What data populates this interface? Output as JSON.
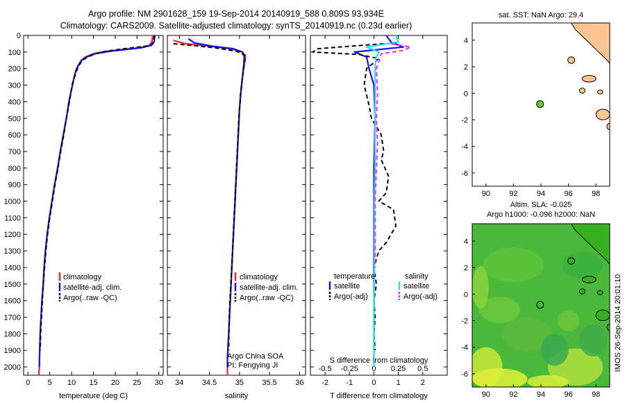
{
  "header": {
    "line1": "Argo profile: NM 2901628_159 19-Sep-2014 20140919_588 0.809S 93.934E",
    "line2": "Climatology: CARS2009. Satellite-adjusted climatology: synTS_20140919.nc (0.23d earlier)"
  },
  "colors": {
    "climatology": "#ff2020",
    "satellite": "#1010ff",
    "argo": "#000000",
    "sal_satellite": "#20e0ff",
    "sal_argo": "#ff20ff",
    "land": "#fcc490",
    "marker": "#66cc33"
  },
  "depth_axis": {
    "ticks": [
      0,
      100,
      200,
      300,
      400,
      500,
      600,
      700,
      800,
      900,
      1000,
      1100,
      1200,
      1300,
      1400,
      1500,
      1600,
      1700,
      1800,
      1900,
      2000
    ],
    "range": [
      0,
      2050
    ]
  },
  "legend": {
    "climatology": "climatology",
    "satellite_adj": "satellite-adj. clim.",
    "argo": "Argo(..raw -QC)",
    "temperature_head": "temperature",
    "salinity_head": "salinity",
    "satellite": "satellite",
    "argo_adj": "Argo(-adj)"
  },
  "annotations": {
    "program": "Argo China SOA",
    "pi": "PI: Fengying JI",
    "imos": "IMOS 26-Sep-2014 20:01:10"
  },
  "chart_data": [
    {
      "type": "line",
      "name": "temperature-profile",
      "xlabel": "temperature (deg C)",
      "ylabel": "",
      "xlim": [
        -1,
        31
      ],
      "ylim": [
        2050,
        0
      ],
      "xticks": [
        0,
        5,
        10,
        15,
        20,
        25,
        30
      ],
      "series": [
        {
          "name": "climatology",
          "color": "#ff2020",
          "x": [
            28.6,
            28.4,
            27.8,
            25.5,
            18,
            15,
            13.2,
            12.2,
            11.5,
            11,
            10.6,
            10.2,
            9.4,
            8.8,
            8.1,
            7.4,
            6.8,
            6.1,
            5.5,
            4.9,
            4.4,
            4.0,
            3.7,
            3.5,
            3.2,
            3.0,
            2.8,
            2.7,
            2.6,
            2.5
          ],
          "depth": [
            0,
            40,
            60,
            75,
            95,
            110,
            130,
            150,
            180,
            210,
            250,
            300,
            400,
            500,
            600,
            700,
            800,
            900,
            1000,
            1100,
            1200,
            1300,
            1400,
            1500,
            1600,
            1700,
            1800,
            1900,
            2000,
            2050
          ]
        },
        {
          "name": "satellite-adj",
          "color": "#1010ff",
          "x": [
            29.1,
            28.9,
            28.3,
            25.8,
            19,
            15.5,
            13.4,
            12.3,
            11.6,
            11,
            10.6,
            10.2,
            9.4,
            8.8,
            8.1,
            7.4,
            6.8,
            6.1,
            5.5,
            4.9,
            4.4,
            4.0,
            3.7,
            3.5,
            3.2,
            3.0,
            2.8,
            2.7,
            2.6
          ],
          "depth": [
            0,
            40,
            60,
            75,
            95,
            110,
            130,
            150,
            180,
            210,
            250,
            300,
            400,
            500,
            600,
            700,
            800,
            900,
            1000,
            1100,
            1200,
            1300,
            1400,
            1500,
            1600,
            1700,
            1800,
            1900,
            2000
          ]
        },
        {
          "name": "argo",
          "color": "#000000",
          "dashed": true,
          "x": [
            29.0,
            28.6,
            27,
            22,
            18,
            15.5,
            13.7,
            12.5,
            11.7,
            11.2,
            10.7,
            10.1,
            9.5,
            8.8,
            8.2,
            7.5,
            6.9,
            6.2,
            5.6,
            5.0,
            4.5,
            4.1,
            3.8,
            3.5,
            3.3,
            3.1,
            2.9,
            2.8
          ],
          "depth": [
            0,
            50,
            65,
            80,
            95,
            110,
            130,
            150,
            180,
            210,
            250,
            300,
            400,
            500,
            600,
            700,
            800,
            900,
            1000,
            1100,
            1200,
            1300,
            1400,
            1500,
            1600,
            1700,
            1800,
            1900
          ]
        }
      ]
    },
    {
      "type": "line",
      "name": "salinity-profile",
      "xlabel": "salinity",
      "ylabel": "",
      "xlim": [
        33.8,
        36.1
      ],
      "ylim": [
        2050,
        0
      ],
      "xticks": [
        34,
        34.5,
        35,
        35.5,
        36
      ],
      "series": [
        {
          "name": "climatology",
          "color": "#ff2020",
          "x": [
            33.9,
            34.1,
            34.5,
            34.85,
            35.05,
            35.1,
            35.08,
            35.05,
            35.02,
            35.0,
            34.98,
            34.96,
            34.94,
            34.92,
            34.9,
            34.88,
            34.86,
            34.84,
            34.82,
            34.8,
            34.8
          ],
          "depth": [
            30,
            50,
            65,
            80,
            100,
            130,
            180,
            250,
            350,
            450,
            600,
            750,
            900,
            1050,
            1200,
            1350,
            1500,
            1650,
            1800,
            1950,
            2050
          ]
        },
        {
          "name": "satellite-adj",
          "color": "#1010ff",
          "x": [
            34.15,
            34.25,
            34.55,
            34.9,
            35.05,
            35.08,
            35.07,
            35.05,
            35.02,
            35.0,
            34.98,
            34.96,
            34.94,
            34.92,
            34.9,
            34.88,
            34.86,
            34.84,
            34.82,
            34.8,
            34.8
          ],
          "depth": [
            20,
            45,
            65,
            80,
            100,
            130,
            180,
            250,
            350,
            450,
            600,
            750,
            900,
            1050,
            1200,
            1350,
            1500,
            1650,
            1800,
            1950,
            2000
          ]
        },
        {
          "name": "argo",
          "color": "#000000",
          "dashed": true,
          "x": [
            33.9,
            34.2,
            34.6,
            34.95,
            35.1,
            35.08,
            35.05,
            35.02,
            34.99,
            34.97,
            34.95,
            34.93,
            34.91,
            34.89,
            34.87,
            34.85,
            34.83,
            34.82
          ],
          "depth": [
            50,
            60,
            75,
            95,
            120,
            170,
            250,
            350,
            500,
            650,
            800,
            950,
            1100,
            1250,
            1400,
            1550,
            1700,
            1900
          ]
        }
      ]
    },
    {
      "type": "line",
      "name": "difference-profile",
      "xlabel": "T difference from climatology",
      "xlabel_top": "S difference from climatology",
      "xlim": [
        -2.6,
        3.0
      ],
      "ylim": [
        2050,
        0
      ],
      "xticks_T": [
        -2,
        -1,
        0,
        1,
        2
      ],
      "xticks_S_labels": [
        "-0.5",
        "-0.25",
        "0",
        "0.25",
        "0.5"
      ],
      "series": [
        {
          "name": "temperature-satellite",
          "color": "#1010ff",
          "x": [
            0.5,
            0.7,
            1.2,
            -0.8,
            -0.3,
            -0.2,
            0,
            0.05,
            0,
            0,
            0,
            0,
            0,
            0,
            0
          ],
          "depth": [
            0,
            40,
            70,
            100,
            130,
            200,
            300,
            500,
            800,
            1000,
            1200,
            1400,
            1600,
            1800,
            2000
          ]
        },
        {
          "name": "temperature-argo",
          "color": "#000000",
          "dashed": true,
          "x": [
            0.4,
            -2.3,
            -2.5,
            -0.6,
            0.2,
            -0.3,
            -0.4,
            -0.2,
            -0.1,
            0.3,
            0.4,
            0.3,
            0.6,
            0.5,
            0.2,
            0.8,
            0.9,
            0.5,
            0.2,
            0,
            0.1,
            0,
            0.05,
            0,
            0.05
          ],
          "depth": [
            50,
            80,
            100,
            115,
            140,
            200,
            300,
            420,
            500,
            600,
            700,
            750,
            850,
            950,
            1000,
            1050,
            1150,
            1250,
            1300,
            1400,
            1500,
            1600,
            1700,
            1800,
            1900
          ]
        },
        {
          "name": "salinity-satellite",
          "color": "#20e0ff",
          "x": [
            0.9,
            1.0,
            -0.3,
            0.2,
            0.1,
            0.05,
            0.05,
            0.05,
            0.05,
            0.05,
            0.02,
            0.02,
            0.02,
            0,
            0,
            0
          ],
          "depth": [
            0,
            40,
            70,
            100,
            130,
            180,
            250,
            400,
            600,
            800,
            1000,
            1200,
            1400,
            1600,
            1800,
            2000
          ]
        },
        {
          "name": "salinity-argo",
          "color": "#ff20ff",
          "dashed": true,
          "x": [
            0.7,
            1.5,
            1.2,
            0.3,
            0.25,
            0.1,
            0.15,
            0.1,
            0.15,
            0.1,
            0.05,
            0.05,
            0.05
          ],
          "depth": [
            50,
            70,
            90,
            110,
            140,
            200,
            350,
            500,
            650,
            800,
            1000,
            1200,
            1400
          ]
        }
      ]
    },
    {
      "type": "scatter",
      "name": "sst-map",
      "title": "sat. SST: NaN Argo: 29.4",
      "xlim": [
        89,
        99
      ],
      "ylim": [
        -7,
        5.3
      ],
      "xticks": [
        90,
        92,
        94,
        96,
        98
      ],
      "yticks": [
        4,
        2,
        0,
        -2,
        -4,
        -6
      ],
      "points": [
        {
          "x": 93.934,
          "y": -0.809
        }
      ]
    },
    {
      "type": "heatmap",
      "name": "sla-map",
      "title1": "Altim. SLA: -0.025",
      "title2": "Argo h1000: -0.096 h2000: NaN",
      "xlim": [
        89,
        99
      ],
      "ylim": [
        -7,
        5.3
      ],
      "xticks": [
        90,
        92,
        94,
        96,
        98
      ],
      "yticks": [
        4,
        2,
        0,
        -2,
        -4,
        -6
      ],
      "points": [
        {
          "x": 93.934,
          "y": -0.809
        }
      ]
    }
  ]
}
